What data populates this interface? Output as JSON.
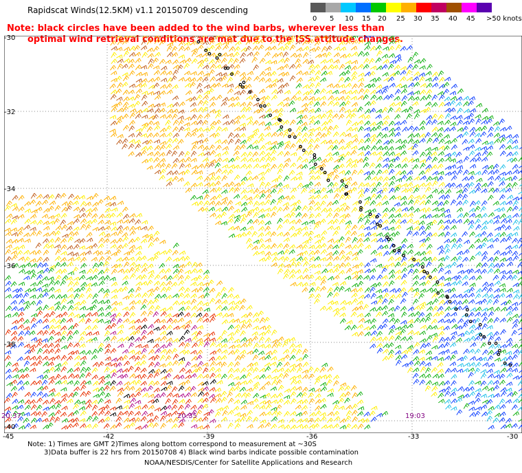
{
  "header": {
    "title": "Rapidscat Winds(12.5KM) v1.1 20150709 descending",
    "note_line1": "Note: black circles have been added to the wind barbs, wherever less than",
    "note_line2": "optimal wind retrieval conditions are met due to the ISS attitude changes."
  },
  "legend": {
    "labels": [
      "0",
      "5",
      "10",
      "15",
      "20",
      "25",
      "30",
      "35",
      "40",
      "45",
      ">50 knots"
    ],
    "colors": [
      "#5a5a5a",
      "#a8a8a8",
      "#00c8ff",
      "#0070ff",
      "#00c800",
      "#ffff00",
      "#ffb000",
      "#ff0000",
      "#c00060",
      "#a05000",
      "#ff00ff",
      "#5a00b0"
    ]
  },
  "map": {
    "lat_labels": [
      "-30",
      "-32",
      "-34",
      "-36",
      "-38",
      "-40"
    ],
    "lon_labels": [
      "-45",
      "-42",
      "-39",
      "-36",
      "-33",
      "-30"
    ],
    "time_labels": [
      "20:37",
      "20:35",
      "19:03"
    ]
  },
  "footer": {
    "note1": "Note: 1) Times are GMT 2)Times along bottom correspond to measurement at ~30S",
    "note2": "3)Data buffer is 22 hrs from 20150708 4) Black wind barbs indicate possible contamination",
    "credit": "NOAA/NESDIS/Center for Satellite Applications and Research"
  }
}
